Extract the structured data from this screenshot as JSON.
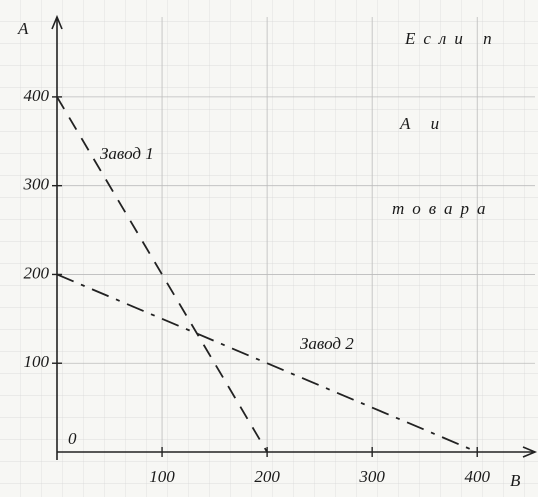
{
  "chart_data": {
    "type": "line",
    "xlabel": "B",
    "ylabel": "A",
    "origin_label": "0",
    "xlim": [
      0,
      455
    ],
    "ylim": [
      0,
      490
    ],
    "xticks": [
      100,
      200,
      300,
      400
    ],
    "yticks": [
      100,
      200,
      300,
      400
    ],
    "grid": true,
    "series": [
      {
        "name": "Завод 1",
        "color": "#222222",
        "x": [
          0,
          200
        ],
        "values": [
          400,
          0
        ]
      },
      {
        "name": "Завод 2",
        "color": "#222222",
        "x": [
          0,
          400
        ],
        "values": [
          200,
          0
        ]
      }
    ],
    "annotations": [
      "Если п",
      "А и",
      "товара"
    ]
  }
}
